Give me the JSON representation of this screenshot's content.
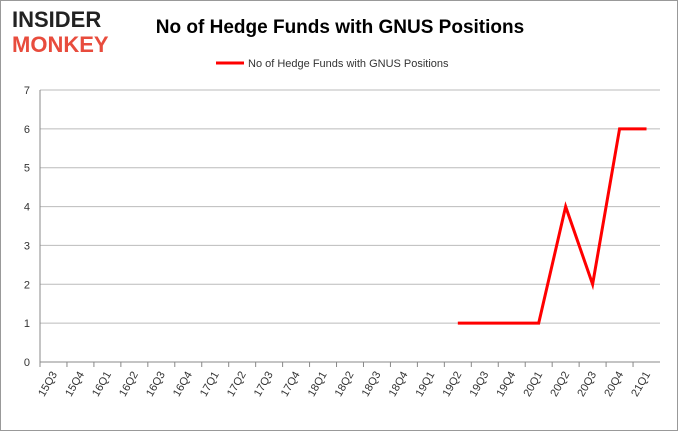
{
  "logo": {
    "line1": "INSIDER",
    "line2": "MONKEY"
  },
  "chart_data": {
    "type": "line",
    "title": "No of Hedge Funds with GNUS Positions",
    "categories": [
      "15Q3",
      "15Q4",
      "16Q1",
      "16Q2",
      "16Q3",
      "16Q4",
      "17Q1",
      "17Q2",
      "17Q3",
      "17Q4",
      "18Q1",
      "18Q2",
      "18Q3",
      "18Q4",
      "19Q1",
      "19Q2",
      "19Q3",
      "19Q4",
      "20Q1",
      "20Q2",
      "20Q3",
      "20Q4",
      "21Q1"
    ],
    "series": [
      {
        "name": "No of Hedge Funds with GNUS Positions",
        "color": "#ff0000",
        "values": [
          null,
          null,
          null,
          null,
          null,
          null,
          null,
          null,
          null,
          null,
          null,
          null,
          null,
          null,
          null,
          1,
          1,
          1,
          1,
          4,
          2,
          6,
          6
        ]
      }
    ],
    "ylim": [
      0,
      7
    ],
    "yticks": [
      0,
      1,
      2,
      3,
      4,
      5,
      6,
      7
    ],
    "grid": true,
    "legend": "top"
  }
}
